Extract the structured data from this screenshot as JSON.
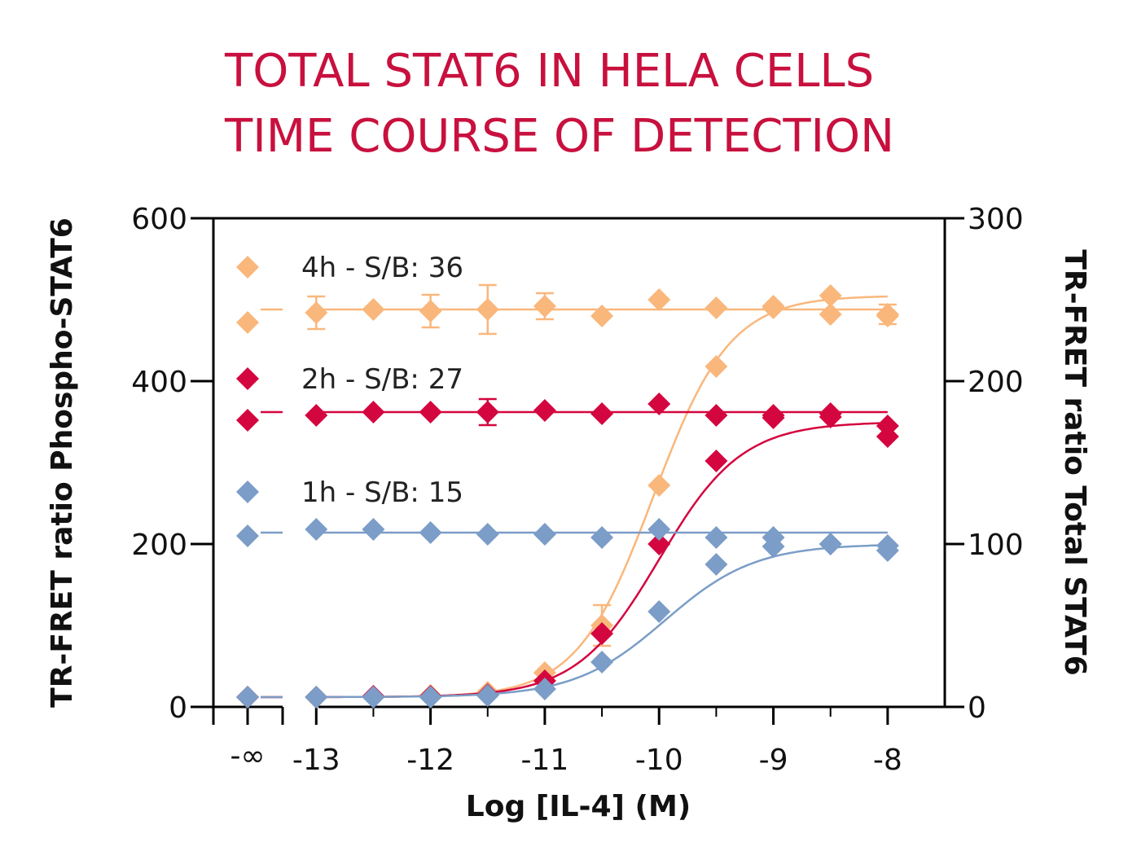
{
  "chart_data": {
    "type": "scatter",
    "title_lines": [
      "TOTAL STAT6 IN HELA CELLS",
      "TIME COURSE OF DETECTION"
    ],
    "xlabel": "Log [IL-4] (M)",
    "ylabel_left": "TR-FRET ratio Phospho-STAT6",
    "ylabel_right": "TR-FRET ratio Total STAT6",
    "x_ticks": [
      -13,
      -12,
      -11,
      -10,
      -9,
      -8
    ],
    "x_tick_labels": [
      "-13",
      "-12",
      "-11",
      "-10",
      "-9",
      "-8"
    ],
    "x_zero_label": "-∞",
    "xlim": [
      -13.9,
      -7.5
    ],
    "ylim_left": [
      0,
      600
    ],
    "ylim_right": [
      0,
      300
    ],
    "y_ticks_left": [
      0,
      200,
      400,
      600
    ],
    "y_tick_labels_left": [
      "0",
      "200",
      "400",
      "600"
    ],
    "y_ticks_right": [
      0,
      100,
      200,
      300
    ],
    "y_tick_labels_right": [
      "0",
      "100",
      "200",
      "300"
    ],
    "x_values": [
      -13,
      -12.5,
      -12,
      -11.5,
      -11,
      -10.5,
      -10,
      -9.5,
      -9,
      -8.5,
      -8
    ],
    "series": [
      {
        "name": "4h",
        "legend": "4h - S/B: 36",
        "color": "#f9b77c",
        "phospho_zero": 12,
        "phospho": [
          12,
          13,
          14,
          18,
          42,
          100,
          272,
          418,
          490,
          505,
          480
        ],
        "phospho_err": [
          0,
          0,
          0,
          0,
          0,
          25,
          0,
          0,
          0,
          0,
          0
        ],
        "total_zero": 236,
        "total": [
          242,
          244,
          243,
          244,
          246,
          240,
          250,
          245,
          246,
          241,
          241
        ],
        "total_err": [
          10,
          0,
          10,
          15,
          8,
          0,
          0,
          0,
          0,
          0,
          6
        ],
        "fit_phospho": {
          "bottom": 12,
          "top": 505,
          "logec50": -10.05,
          "hill": 1.3
        },
        "fit_total_level": 244
      },
      {
        "name": "2h",
        "legend": "2h - S/B: 27",
        "color": "#d4063f",
        "phospho_zero": 12,
        "phospho": [
          12,
          13,
          13,
          15,
          32,
          90,
          200,
          302,
          355,
          360,
          345
        ],
        "phospho_err": [
          0,
          0,
          0,
          0,
          0,
          0,
          0,
          0,
          0,
          0,
          0
        ],
        "total_zero": 176,
        "total": [
          179,
          181,
          181,
          181,
          182,
          180,
          186,
          179,
          179,
          178,
          166
        ],
        "total_err": [
          0,
          0,
          0,
          8,
          0,
          0,
          0,
          0,
          0,
          0,
          0
        ],
        "fit_phospho": {
          "bottom": 12,
          "top": 350,
          "logec50": -10.0,
          "hill": 1.2
        },
        "fit_total_level": 181
      },
      {
        "name": "1h",
        "legend": "1h - S/B: 15",
        "color": "#7b9dc7",
        "phospho_zero": 12,
        "phospho": [
          12,
          12,
          12,
          14,
          22,
          55,
          117,
          175,
          197,
          200,
          198
        ],
        "phospho_err": [
          0,
          0,
          0,
          0,
          0,
          0,
          0,
          0,
          0,
          0,
          0
        ],
        "total_zero": 105,
        "total": [
          109,
          109,
          107,
          106,
          106,
          104,
          109,
          104,
          104,
          100,
          96
        ],
        "total_err": [
          0,
          0,
          0,
          0,
          0,
          0,
          0,
          0,
          0,
          0,
          0
        ],
        "fit_phospho": {
          "bottom": 12,
          "top": 200,
          "logec50": -9.95,
          "hill": 1.1
        },
        "fit_total_level": 107
      }
    ]
  }
}
